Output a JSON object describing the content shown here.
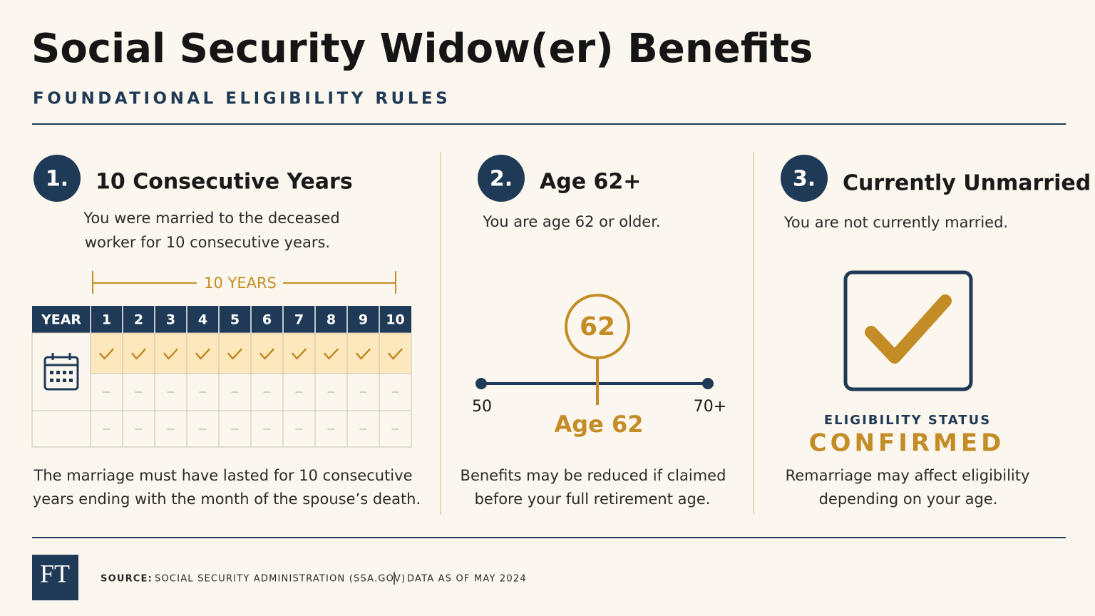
{
  "header": {
    "title": "Social Security Widow(er) Benefits",
    "subtitle": "FOUNDATIONAL ELIGIBILITY RULES"
  },
  "columns": [
    {
      "number": "1.",
      "heading": "10 Consecutive Years",
      "description": [
        "You were married to the deceased",
        "worker for 10 consecutive years."
      ],
      "span_label": "10 YEARS",
      "table_header": [
        "YEAR",
        "1",
        "2",
        "3",
        "4",
        "5",
        "6",
        "7",
        "8",
        "9",
        "10"
      ],
      "note": [
        "The marriage must have lasted for 10 consecutive",
        "years ending with the month of the spouse’s death."
      ]
    },
    {
      "number": "2.",
      "heading": "Age 62+",
      "description": [
        "You are age 62 or older."
      ],
      "scale_start": "50",
      "scale_end": "70+",
      "marker": "62",
      "marker_label": "Age 62",
      "note": [
        "Benefits may be reduced if claimed",
        "before your full retirement age."
      ]
    },
    {
      "number": "3.",
      "heading": "Currently Unmarried",
      "description": [
        "You are not currently married."
      ],
      "status_label": "ELIGIBILITY STATUS",
      "status": "CONFIRMED",
      "note": [
        "Remarriage may affect eligibility",
        "depending on your age."
      ]
    }
  ],
  "footer": {
    "logo": "FT",
    "source_label": "SOURCE:",
    "source": "SOCIAL SECURITY ADMINISTRATION (SSA.GOV)",
    "date": "DATA AS OF MAY 2024"
  }
}
